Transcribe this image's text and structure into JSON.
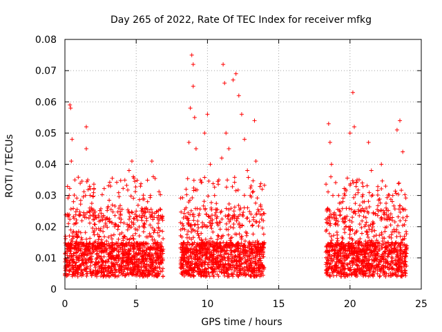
{
  "chart_data": {
    "type": "scatter",
    "title": "Day 265 of 2022, Rate Of TEC Index for receiver mfkg",
    "xlabel": "GPS time / hours",
    "ylabel": "ROTI / TECUs",
    "xlim": [
      0,
      25
    ],
    "ylim": [
      0,
      0.08
    ],
    "xticks": [
      0,
      5,
      10,
      15,
      20,
      25
    ],
    "xtick_labels": [
      "0",
      "5",
      "10",
      "15",
      "20",
      "25"
    ],
    "yticks": [
      0,
      0.01,
      0.02,
      0.03,
      0.04,
      0.05,
      0.06,
      0.07,
      0.08
    ],
    "ytick_labels": [
      "0",
      "0.01",
      "0.02",
      "0.03",
      "0.04",
      "0.05",
      "0.06",
      "0.07",
      "0.08"
    ],
    "grid": true,
    "marker": "plus",
    "marker_color": "#ff0000",
    "data_segments": [
      {
        "x_start": 0.0,
        "x_end": 6.9
      },
      {
        "x_start": 8.1,
        "x_end": 14.0
      },
      {
        "x_start": 18.3,
        "x_end": 24.0
      }
    ],
    "series": [
      {
        "points": [
          [
            0.1,
            0.005
          ],
          [
            0.2,
            0.012
          ],
          [
            0.25,
            0.021
          ],
          [
            0.3,
            0.03
          ],
          [
            0.35,
            0.059
          ],
          [
            0.4,
            0.058
          ],
          [
            0.45,
            0.041
          ],
          [
            0.5,
            0.048
          ],
          [
            0.6,
            0.028
          ],
          [
            0.7,
            0.035
          ],
          [
            0.8,
            0.018
          ],
          [
            1.0,
            0.01
          ],
          [
            1.3,
            0.011
          ],
          [
            1.5,
            0.052
          ],
          [
            1.5,
            0.045
          ],
          [
            1.6,
            0.035
          ],
          [
            1.7,
            0.025
          ],
          [
            2.0,
            0.014
          ],
          [
            2.5,
            0.022
          ],
          [
            3.0,
            0.026
          ],
          [
            3.2,
            0.033
          ],
          [
            3.5,
            0.02
          ],
          [
            4.0,
            0.018
          ],
          [
            4.5,
            0.038
          ],
          [
            4.7,
            0.041
          ],
          [
            4.8,
            0.036
          ],
          [
            5.0,
            0.025
          ],
          [
            5.5,
            0.02
          ],
          [
            5.8,
            0.028
          ],
          [
            6.0,
            0.03
          ],
          [
            6.1,
            0.041
          ],
          [
            6.2,
            0.036
          ],
          [
            6.5,
            0.015
          ],
          [
            6.8,
            0.01
          ],
          [
            8.3,
            0.008
          ],
          [
            8.5,
            0.032
          ],
          [
            8.7,
            0.047
          ],
          [
            8.8,
            0.058
          ],
          [
            8.9,
            0.075
          ],
          [
            9.0,
            0.072
          ],
          [
            9.0,
            0.065
          ],
          [
            9.1,
            0.055
          ],
          [
            9.2,
            0.045
          ],
          [
            9.5,
            0.035
          ],
          [
            9.8,
            0.05
          ],
          [
            10.0,
            0.056
          ],
          [
            10.2,
            0.04
          ],
          [
            10.5,
            0.03
          ],
          [
            10.8,
            0.035
          ],
          [
            11.0,
            0.042
          ],
          [
            11.1,
            0.072
          ],
          [
            11.2,
            0.066
          ],
          [
            11.3,
            0.05
          ],
          [
            11.5,
            0.045
          ],
          [
            11.8,
            0.067
          ],
          [
            12.0,
            0.069
          ],
          [
            12.2,
            0.062
          ],
          [
            12.4,
            0.056
          ],
          [
            12.6,
            0.048
          ],
          [
            12.8,
            0.038
          ],
          [
            13.0,
            0.03
          ],
          [
            13.3,
            0.054
          ],
          [
            13.4,
            0.041
          ],
          [
            13.6,
            0.025
          ],
          [
            13.9,
            0.012
          ],
          [
            18.5,
            0.053
          ],
          [
            18.6,
            0.047
          ],
          [
            18.7,
            0.04
          ],
          [
            18.8,
            0.03
          ],
          [
            19.0,
            0.022
          ],
          [
            19.2,
            0.03
          ],
          [
            19.5,
            0.028
          ],
          [
            20.0,
            0.05
          ],
          [
            20.2,
            0.063
          ],
          [
            20.3,
            0.052
          ],
          [
            20.5,
            0.035
          ],
          [
            21.0,
            0.028
          ],
          [
            21.3,
            0.047
          ],
          [
            21.5,
            0.038
          ],
          [
            22.0,
            0.025
          ],
          [
            22.2,
            0.04
          ],
          [
            22.5,
            0.033
          ],
          [
            23.0,
            0.03
          ],
          [
            23.3,
            0.051
          ],
          [
            23.5,
            0.054
          ],
          [
            23.7,
            0.044
          ],
          [
            23.9,
            0.022
          ]
        ]
      }
    ]
  }
}
